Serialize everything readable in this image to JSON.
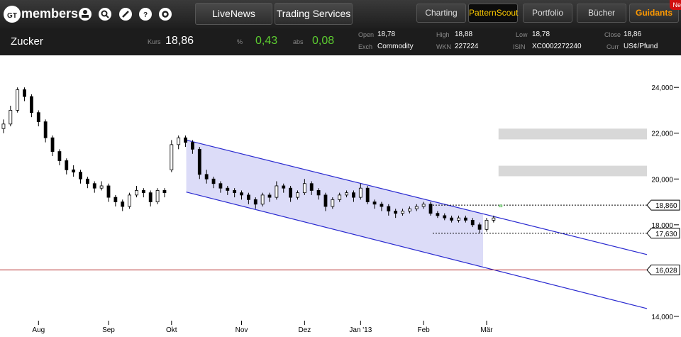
{
  "header": {
    "logo_mark": "GT",
    "logo_text": "members",
    "buttons": [
      "LiveNews",
      "Trading Services"
    ],
    "tabs": [
      "Charting",
      "PatternScout",
      "Portfolio",
      "Bücher",
      "Guidants"
    ],
    "active_tab": 1,
    "badge": "Ne"
  },
  "quote": {
    "name": "Zucker",
    "price_label": "Kurs",
    "price": "18,86",
    "pct_label": "%",
    "pct": "0,43",
    "abs_label": "abs",
    "abs": "0,08",
    "fields": [
      [
        "Open",
        "18,78"
      ],
      [
        "Exch",
        "Commodity"
      ],
      [
        "High",
        "18,88"
      ],
      [
        "WKN",
        "227224"
      ],
      [
        "Low",
        "18,78"
      ],
      [
        "ISIN",
        "XC0002272240"
      ],
      [
        "Close",
        "18,86"
      ],
      [
        "Curr",
        "US¢/Pfund"
      ]
    ]
  },
  "chart_data": {
    "type": "candlestick",
    "up_color": "#ffffff",
    "down_color": "#000000",
    "candles": [
      [
        22.2,
        22.6,
        22.0,
        22.4
      ],
      [
        22.4,
        23.2,
        22.3,
        23.0
      ],
      [
        23.0,
        24.0,
        22.9,
        23.9
      ],
      [
        23.9,
        24.0,
        23.4,
        23.6
      ],
      [
        23.6,
        23.7,
        22.7,
        22.9
      ],
      [
        22.9,
        23.0,
        22.3,
        22.5
      ],
      [
        22.5,
        22.6,
        21.6,
        21.8
      ],
      [
        21.8,
        21.9,
        21.0,
        21.2
      ],
      [
        21.2,
        21.3,
        20.6,
        20.8
      ],
      [
        20.8,
        20.9,
        20.2,
        20.4
      ],
      [
        20.4,
        20.6,
        20.1,
        20.3
      ],
      [
        20.3,
        20.4,
        19.8,
        20.0
      ],
      [
        20.0,
        20.1,
        19.6,
        19.8
      ],
      [
        19.8,
        19.9,
        19.4,
        19.6
      ],
      [
        19.6,
        19.9,
        19.5,
        19.7
      ],
      [
        19.7,
        19.8,
        19.0,
        19.2
      ],
      [
        19.2,
        19.3,
        18.8,
        19.0
      ],
      [
        19.0,
        19.1,
        18.6,
        18.8
      ],
      [
        18.8,
        19.4,
        18.7,
        19.3
      ],
      [
        19.3,
        19.7,
        19.2,
        19.5
      ],
      [
        19.5,
        19.6,
        19.2,
        19.4
      ],
      [
        19.4,
        19.5,
        18.8,
        19.0
      ],
      [
        19.0,
        19.6,
        18.9,
        19.5
      ],
      [
        19.5,
        19.6,
        19.2,
        19.4
      ],
      [
        20.4,
        21.7,
        20.3,
        21.5
      ],
      [
        21.5,
        21.9,
        21.3,
        21.8
      ],
      [
        21.8,
        21.9,
        21.4,
        21.6
      ],
      [
        21.6,
        21.7,
        21.1,
        21.3
      ],
      [
        21.3,
        21.4,
        20.0,
        20.2
      ],
      [
        20.2,
        20.4,
        19.8,
        20.0
      ],
      [
        20.0,
        20.1,
        19.6,
        19.8
      ],
      [
        19.8,
        19.9,
        19.4,
        19.6
      ],
      [
        19.6,
        19.7,
        19.3,
        19.5
      ],
      [
        19.5,
        19.6,
        19.2,
        19.4
      ],
      [
        19.4,
        19.5,
        19.1,
        19.3
      ],
      [
        19.3,
        19.4,
        18.9,
        19.1
      ],
      [
        19.1,
        19.2,
        18.7,
        18.9
      ],
      [
        18.9,
        19.4,
        18.8,
        19.3
      ],
      [
        19.3,
        19.4,
        19.0,
        19.2
      ],
      [
        19.2,
        19.9,
        19.1,
        19.7
      ],
      [
        19.7,
        19.8,
        19.4,
        19.6
      ],
      [
        19.6,
        19.7,
        19.0,
        19.2
      ],
      [
        19.2,
        19.5,
        19.1,
        19.4
      ],
      [
        19.4,
        20.0,
        19.3,
        19.8
      ],
      [
        19.8,
        19.9,
        19.3,
        19.5
      ],
      [
        19.5,
        19.6,
        19.1,
        19.3
      ],
      [
        19.3,
        19.4,
        18.6,
        18.8
      ],
      [
        18.8,
        19.2,
        18.7,
        19.1
      ],
      [
        19.1,
        19.4,
        19.0,
        19.3
      ],
      [
        19.3,
        19.5,
        19.2,
        19.4
      ],
      [
        19.4,
        19.5,
        19.0,
        19.2
      ],
      [
        19.2,
        19.8,
        19.1,
        19.6
      ],
      [
        19.6,
        19.7,
        18.9,
        19.0
      ],
      [
        19.0,
        19.1,
        18.7,
        18.9
      ],
      [
        18.9,
        19.0,
        18.6,
        18.8
      ],
      [
        18.8,
        18.9,
        18.4,
        18.6
      ],
      [
        18.6,
        18.7,
        18.3,
        18.5
      ],
      [
        18.5,
        18.7,
        18.4,
        18.6
      ],
      [
        18.6,
        18.8,
        18.5,
        18.7
      ],
      [
        18.7,
        18.9,
        18.6,
        18.8
      ],
      [
        18.8,
        19.0,
        18.7,
        18.9
      ],
      [
        18.9,
        19.0,
        18.4,
        18.5
      ],
      [
        18.5,
        18.6,
        18.3,
        18.4
      ],
      [
        18.4,
        18.5,
        18.2,
        18.3
      ],
      [
        18.3,
        18.4,
        18.1,
        18.2
      ],
      [
        18.2,
        18.4,
        18.1,
        18.3
      ],
      [
        18.3,
        18.4,
        18.1,
        18.2
      ],
      [
        18.2,
        18.3,
        17.9,
        18.0
      ],
      [
        18.0,
        18.1,
        17.63,
        17.8
      ],
      [
        17.8,
        18.3,
        17.7,
        18.2
      ],
      [
        18.2,
        18.4,
        18.1,
        18.3
      ],
      [
        18.78,
        18.88,
        18.78,
        18.86
      ]
    ],
    "xlim": [
      -0.5,
      91.9
    ],
    "ylim": [
      13.1,
      25.4
    ],
    "xticks": [
      {
        "value": 5,
        "label": "Aug"
      },
      {
        "value": 15,
        "label": "Sep"
      },
      {
        "value": 24,
        "label": "Okt"
      },
      {
        "value": 34,
        "label": "Nov"
      },
      {
        "value": 43,
        "label": "Dez"
      },
      {
        "value": 51,
        "label": "Jan '13"
      },
      {
        "value": 60,
        "label": "Feb"
      },
      {
        "value": 69,
        "label": "Mär"
      }
    ],
    "yticks": [
      {
        "value": 24,
        "label": "24,000"
      },
      {
        "value": 22,
        "label": "22,000"
      },
      {
        "value": 20,
        "label": "20,000"
      },
      {
        "value": 18,
        "label": "18,000"
      },
      {
        "value": 14,
        "label": "14,000"
      }
    ],
    "channel": {
      "from": 26.1,
      "to": 91.9,
      "shade_to": 68.5,
      "upper": [
        21.7,
        16.7
      ],
      "lower": [
        19.43,
        14.34
      ],
      "color": "#2a2ad0",
      "fill": "#dcdcf8"
    },
    "zones": [
      {
        "low": 21.73,
        "high": 22.2,
        "from": 70.7
      },
      {
        "low": 20.12,
        "high": 20.58,
        "from": 70.7
      }
    ],
    "levels": [
      {
        "value": 18.86,
        "label": "18,860",
        "from": 61.3,
        "dashed": true,
        "color": "#000000"
      },
      {
        "value": 17.63,
        "label": "17,630",
        "from": 61.3,
        "dashed": true,
        "color": "#000000"
      },
      {
        "value": 16.028,
        "label": "16,028",
        "from": -0.5,
        "dashed": false,
        "color": "#b02020"
      }
    ]
  }
}
